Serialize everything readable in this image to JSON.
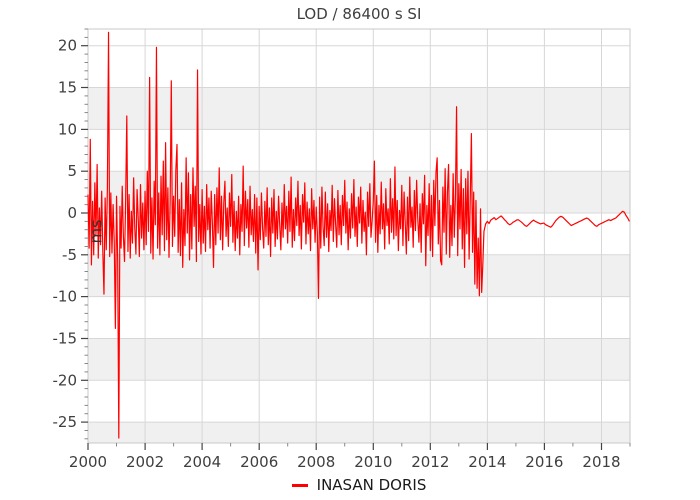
{
  "chart_data": {
    "type": "line",
    "title": "LOD / 86400 s SI",
    "ylabel": "ms",
    "xlabel": "",
    "xlim": [
      2000,
      2019
    ],
    "ylim": [
      -27.5,
      22
    ],
    "grid": true,
    "x_major_ticks": [
      2000,
      2002,
      2004,
      2006,
      2008,
      2010,
      2012,
      2014,
      2016,
      2018
    ],
    "x_minor_step": 1,
    "y_major_ticks": [
      -25,
      -20,
      -15,
      -10,
      -5,
      0,
      5,
      10,
      15,
      20
    ],
    "y_minor_step": 1,
    "bands": [
      [
        -30,
        -25
      ],
      [
        -20,
        -15
      ],
      [
        -10,
        -5
      ],
      [
        0,
        5
      ],
      [
        10,
        15
      ]
    ],
    "colors": {
      "series": "#ff0000",
      "band": "#f0f0f0",
      "grid": "#d7d7d7",
      "spine": "#c9c9c9",
      "tick_major": "#444444",
      "tick_minor": "#888888",
      "text": "#3f3f3f"
    },
    "legend": [
      {
        "label": "INASAN DORIS",
        "color": "#ff0000"
      }
    ],
    "legend_position": "bottom-center",
    "series": [
      {
        "name": "INASAN DORIS",
        "color": "#ff0000",
        "segments": [
          {
            "x0": 2000.0,
            "dx": 0.04,
            "y": [
              2.2,
              -4.2,
              8.8,
              -6.2,
              1.4,
              -5.0,
              3.6,
              -2.6,
              5.8,
              -5.4,
              0.6,
              -3.8,
              2.6,
              -4.6,
              -9.7,
              1.8,
              -4.4,
              3.0,
              21.6,
              -5.2,
              2.4,
              -4.8,
              1.0,
              -3.4,
              -13.8,
              2.0,
              -5.6,
              -26.9,
              0.8,
              -4.2,
              3.2,
              -2.8,
              -5.8,
              1.6,
              11.6,
              -4.6,
              2.2,
              -5.4,
              0.2,
              -3.6,
              4.2,
              -1.8,
              -4.9,
              2.8,
              -0.6,
              -5.2,
              3.4,
              -3.0,
              1.2,
              -4.4,
              2.6,
              -3.8,
              5.0,
              -2.2,
              16.2,
              -4.8,
              1.8,
              -5.5,
              3.8,
              -1.4,
              19.8,
              -4.2,
              2.4,
              -5.0,
              4.4,
              -2.6,
              6.2,
              -4.5,
              8.4,
              -3.2,
              3.0,
              -5.3,
              1.4,
              15.8,
              -4.0,
              2.0,
              -2.8,
              5.2,
              8.2,
              -4.7,
              1.6,
              -5.1,
              3.6,
              -6.5,
              0.4,
              -3.9,
              6.6,
              -2.4,
              4.8,
              -5.6,
              2.2,
              -4.3,
              5.4,
              -1.6,
              3.2,
              -5.8,
              17.1,
              -3.4,
              1.0,
              -4.9,
              2.8,
              -3.6,
              0.8,
              -4.6,
              3.4,
              -2.0,
              1.8,
              -4.2,
              2.6,
              -1.2,
              -6.5,
              2.2,
              -3.8,
              3.0,
              -2.4,
              5.4,
              -3.2,
              2.0,
              -4.4,
              1.2,
              3.8,
              -2.8,
              0.6,
              -4.0,
              2.4,
              -1.6,
              4.6,
              -3.5,
              1.4,
              -4.5,
              0.2,
              -3.0,
              2.0,
              -5.0,
              1.0,
              -2.2,
              5.6,
              -3.9,
              2.6,
              -1.8,
              1.6,
              -4.1,
              3.2,
              -2.6,
              0.4,
              -3.4,
              2.2,
              -4.8,
              1.8,
              -6.8,
              0.8,
              -3.2,
              2.4,
              -1.8,
              -4.2,
              1.4,
              -2.8,
              3.0,
              -3.8,
              0.6,
              -5.2,
              1.8,
              -2.4,
              2.8,
              -4.0,
              0.2,
              -3.1,
              2.0,
              -1.4,
              -4.4,
              1.2,
              -2.9,
              3.4,
              -1.9,
              0.8,
              -3.6,
              2.6,
              -2.2,
              4.3,
              -4.1,
              0.4,
              -3.3,
              1.8,
              -1.5,
              3.8,
              -2.7,
              0.9,
              -4.3,
              2.2,
              -1.1,
              3.6,
              -3.7,
              1.3,
              -2.5,
              0.5,
              -4.5,
              2.9,
              -1.9,
              1.5,
              -3.5,
              0.7,
              -2.3,
              -10.2,
              1.9,
              -4.2,
              3.1,
              -1.7,
              -3.9,
              2.5,
              -2.9,
              1.1,
              -4.6,
              0.3,
              -2.1,
              3.3,
              -3.4,
              1.7,
              -1.3,
              -4.1,
              2.7,
              -2.6,
              0.9,
              -3.8,
              2.1,
              -1.5,
              3.9,
              -2.4,
              1.3,
              -4.4,
              0.5,
              -3.0,
              2.3,
              -1.8,
              4.0,
              -2.8,
              0.7,
              -4.0,
              1.9,
              -1.2,
              3.1,
              -3.6,
              1.5,
              -2.2,
              0.1,
              -5.0,
              2.5,
              -1.6,
              3.5,
              -2.9,
              -0.9,
              1.3,
              6.2,
              -3.5,
              2.1,
              -4.7,
              0.9,
              -2.5,
              3.7,
              -1.9,
              1.1,
              -4.3,
              2.9,
              -1.5,
              0.5,
              -3.7,
              4.1,
              -2.3,
              1.7,
              -3.1,
              5.5,
              -2.7,
              1.5,
              -4.5,
              0.3,
              -1.9,
              3.3,
              -3.9,
              2.5,
              -1.1,
              -4.9,
              1.9,
              -3.3,
              4.3,
              -1.7,
              0.7,
              -4.1,
              2.7,
              -2.1,
              3.9,
              -0.7,
              -3.5,
              1.1,
              -4.7,
              2.3,
              -1.3,
              4.5,
              -6.3,
              0.9,
              -2.7,
              3.5,
              -4.5,
              2.1,
              -5.2,
              3.9,
              -1.5,
              4.9,
              6.6,
              -3.7,
              1.5,
              -5.7,
              -6.2,
              3.1,
              -2.3,
              5.3,
              -4.9,
              2.5,
              5.8,
              -5.3,
              0.9,
              -3.9,
              4.7,
              -2.9,
              1.9,
              12.7,
              -5.1,
              3.5,
              -1.9,
              5.2,
              -4.3,
              2.9,
              -6.5,
              4.1,
              -2.5,
              5.0,
              -5.5,
              1.7,
              9.5,
              -4.7,
              2.5,
              -8.5,
              1.5,
              -9.0,
              -3.0,
              -9.9,
              0.5,
              -9.5,
              -6.2,
              -2.2
            ]
          },
          {
            "x0": 2013.94,
            "dx": 0.06,
            "y": [
              -1.3,
              -1.0,
              -1.25,
              -0.85,
              -0.7,
              -0.55,
              -0.8,
              -0.65,
              -0.5,
              -0.35,
              -0.55,
              -0.8,
              -1.0,
              -1.25,
              -1.4,
              -1.3,
              -1.1,
              -1.0,
              -0.85,
              -0.8,
              -0.95,
              -1.1,
              -1.3,
              -1.5,
              -1.6,
              -1.4,
              -1.2,
              -1.0,
              -0.85,
              -1.0,
              -1.1,
              -1.2,
              -1.3,
              -1.25,
              -1.2,
              -1.4,
              -1.5,
              -1.6,
              -1.7,
              -1.5,
              -1.2,
              -0.9,
              -0.7,
              -0.5,
              -0.4,
              -0.5,
              -0.7,
              -0.9,
              -1.1,
              -1.3,
              -1.5,
              -1.4,
              -1.3,
              -1.2,
              -1.1,
              -1.0,
              -0.9,
              -0.8,
              -0.7,
              -0.6,
              -0.7,
              -0.9,
              -1.1,
              -1.3,
              -1.5,
              -1.6,
              -1.4,
              -1.3,
              -1.2,
              -1.1,
              -1.0,
              -0.9,
              -0.8,
              -0.9,
              -0.8,
              -0.7,
              -0.6,
              -0.4,
              -0.2,
              0.0,
              0.2,
              0.1,
              -0.3,
              -0.6,
              -1.0
            ]
          }
        ]
      }
    ]
  }
}
